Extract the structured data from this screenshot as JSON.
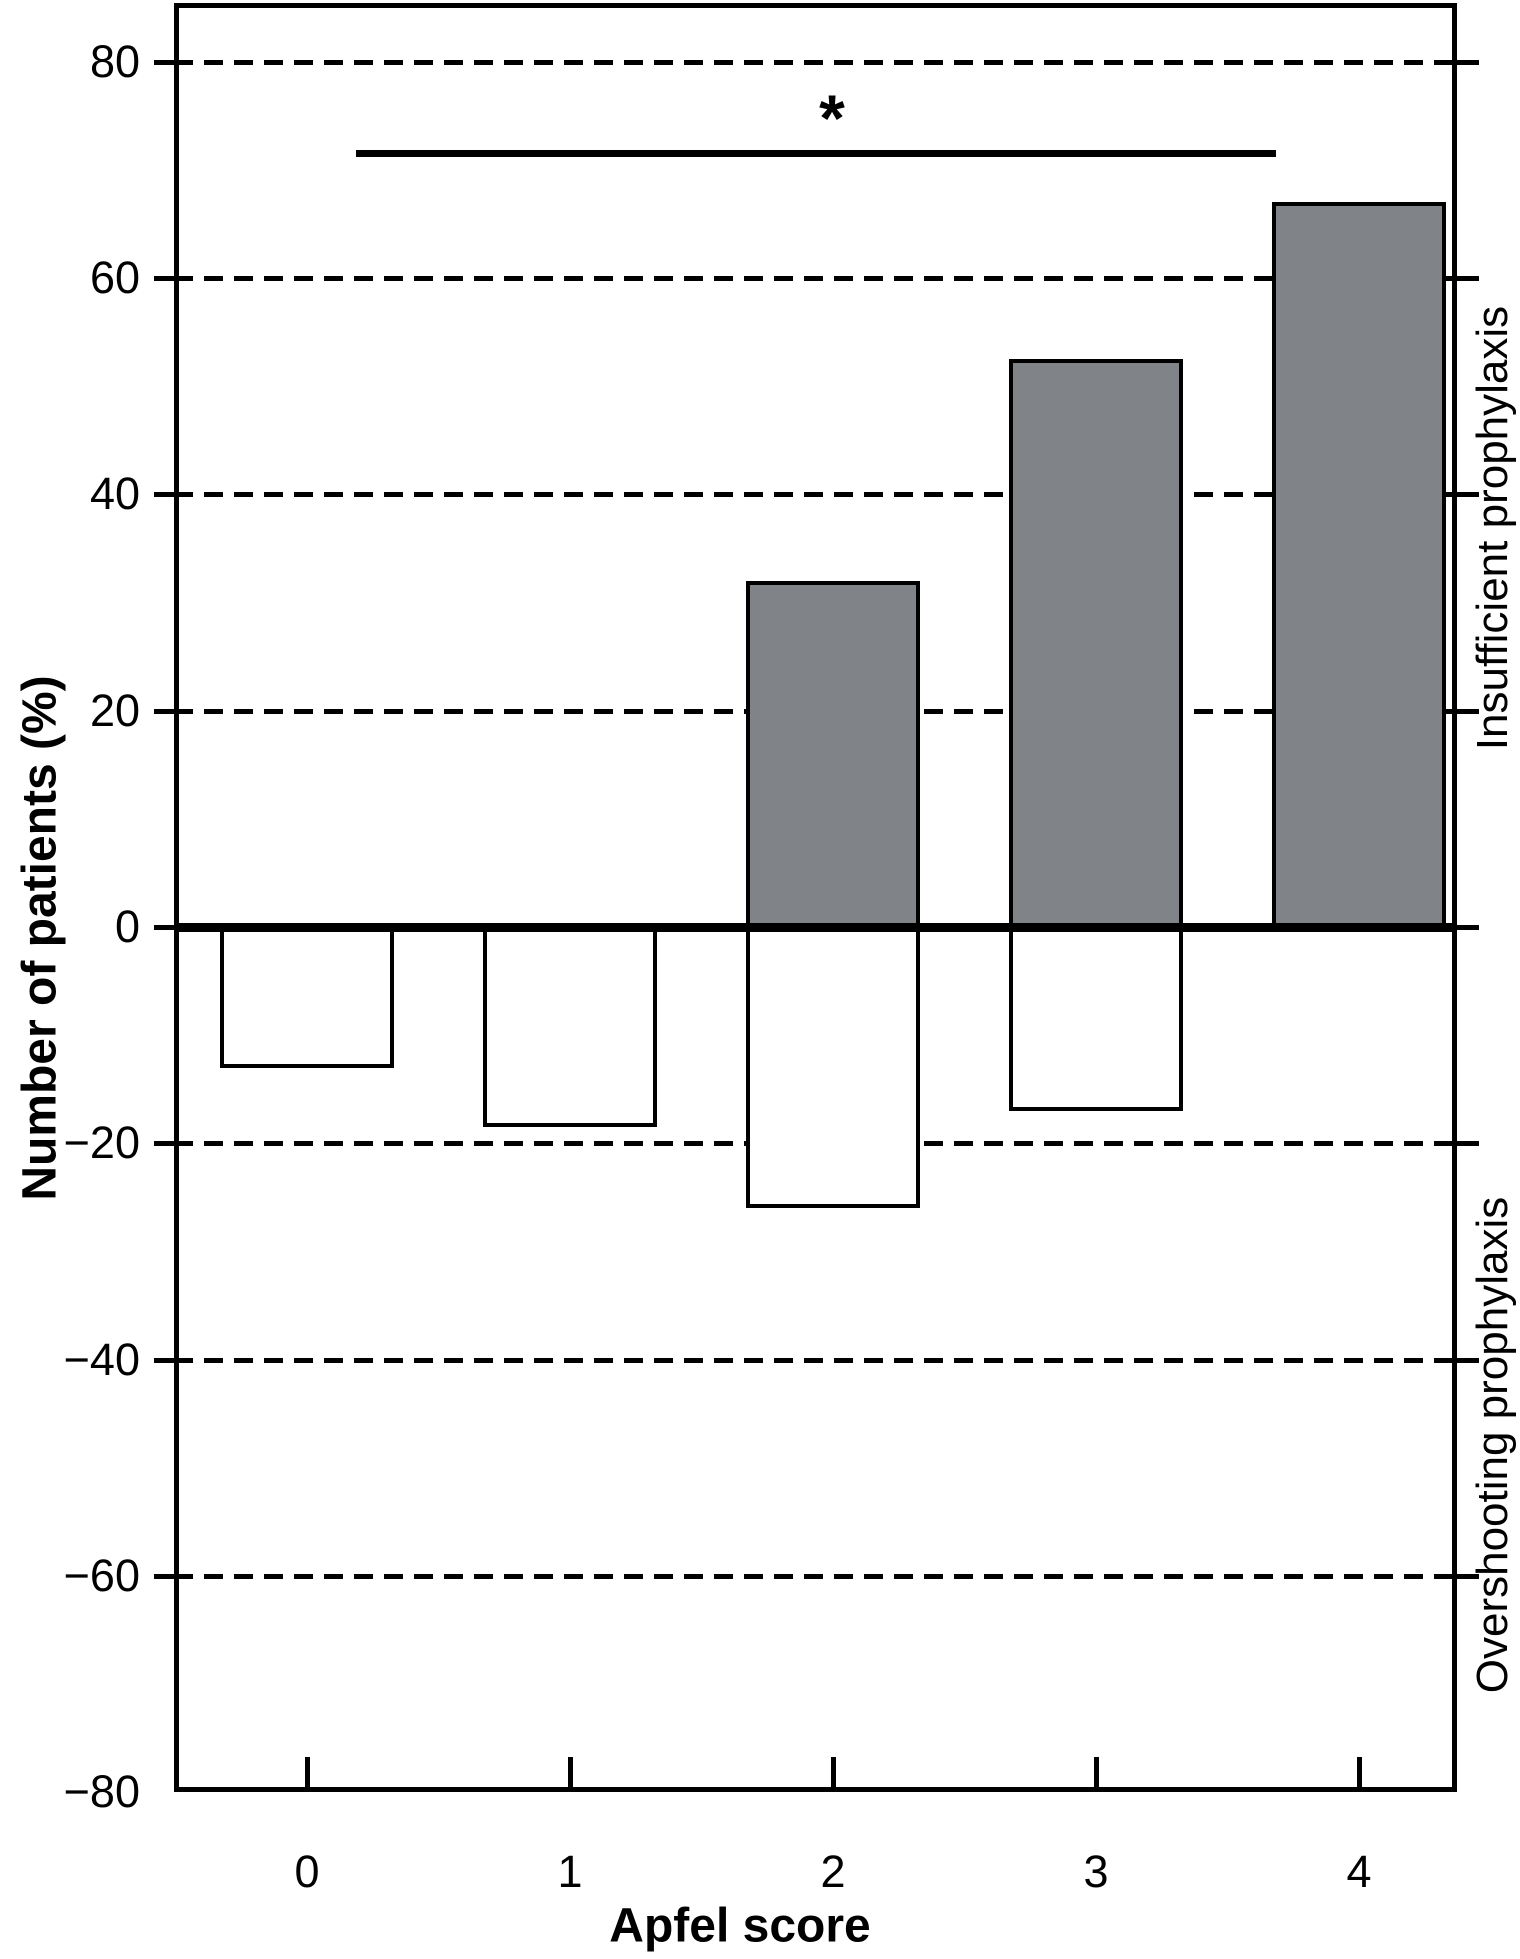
{
  "chart_data": {
    "type": "bar",
    "title": "",
    "xlabel": "Apfel score",
    "ylabel": "Number of patients (%)",
    "categories": [
      "0",
      "1",
      "2",
      "3",
      "4"
    ],
    "series": [
      {
        "name": "Insufficient prophylaxis",
        "direction": "positive",
        "fill": "#808388",
        "values": [
          0,
          0,
          32,
          52.5,
          67
        ]
      },
      {
        "name": "Overshooting prophylaxis",
        "direction": "negative",
        "fill": "#ffffff",
        "values": [
          -13,
          -18.5,
          -26,
          -17,
          0
        ]
      }
    ],
    "ylim": [
      -80,
      85.5
    ],
    "yticks": [
      80,
      60,
      40,
      20,
      0,
      -20,
      -40,
      -60,
      -80
    ],
    "ytick_labels": [
      "80",
      "60",
      "40",
      "20",
      "0",
      "−20",
      "−40",
      "−60",
      "−80"
    ],
    "grid": "horizontal dashed lines at every 20 units; solid thick line at 0; solid frame at -80 bottom",
    "legend_position": "none",
    "right_axis_labels": {
      "positive": "Insufficient prophylaxis",
      "negative": "Overshooting prophylaxis"
    },
    "annotations": {
      "significance": {
        "label": "*",
        "y": 72,
        "span": "from Apfel score 0 to Apfel score 4"
      }
    },
    "colors": {
      "line": "#000000",
      "positive_bar_fill": "#808388",
      "negative_bar_fill": "#ffffff",
      "background": "#ffffff"
    }
  }
}
